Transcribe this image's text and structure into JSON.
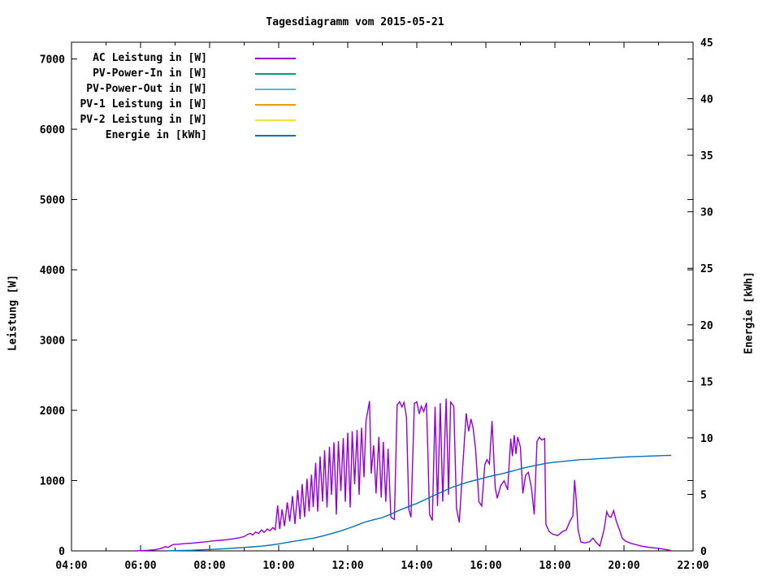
{
  "title": "Tagesdiagramm vom 2015-05-21",
  "axes": {
    "x": {
      "tick_labels": [
        "04:00",
        "06:00",
        "08:00",
        "10:00",
        "12:00",
        "14:00",
        "16:00",
        "18:00",
        "20:00",
        "22:00"
      ],
      "major_tick_hours": [
        4,
        6,
        8,
        10,
        12,
        14,
        16,
        18,
        20,
        22
      ],
      "minor_tick_hours": [
        5,
        7,
        9,
        11,
        13,
        15,
        17,
        19,
        21
      ]
    },
    "y_left": {
      "label": "Leistung [W]",
      "tick_labels": [
        "0",
        "1000",
        "2000",
        "3000",
        "4000",
        "5000",
        "6000",
        "7000"
      ],
      "tick_values": [
        0,
        1000,
        2000,
        3000,
        4000,
        5000,
        6000,
        7000
      ]
    },
    "y_right": {
      "label": "Energie [kWh]",
      "tick_labels": [
        "0",
        "5",
        "10",
        "15",
        "20",
        "25",
        "30",
        "35",
        "40",
        "45"
      ],
      "tick_values": [
        0,
        5,
        10,
        15,
        20,
        25,
        30,
        35,
        40,
        45
      ]
    }
  },
  "chart_data": {
    "type": "line",
    "title": "Tagesdiagramm vom 2015-05-21",
    "xlabel": "",
    "ylabel_left": "Leistung [W]",
    "ylabel_right": "Energie [kWh]",
    "x_range_hours": [
      4,
      22
    ],
    "y_left_range": [
      0,
      7238
    ],
    "y_right_range": [
      0,
      45
    ],
    "grid": false,
    "legend_position": "top-left-inside",
    "series": [
      {
        "name": "AC Leistung in [W]",
        "color": "#9400d3",
        "axis": "left",
        "points": [
          [
            5.85,
            0
          ],
          [
            6.0,
            3
          ],
          [
            6.2,
            8
          ],
          [
            6.4,
            15
          ],
          [
            6.55,
            30
          ],
          [
            6.65,
            45
          ],
          [
            6.72,
            60
          ],
          [
            6.8,
            50
          ],
          [
            6.88,
            75
          ],
          [
            6.95,
            90
          ],
          [
            7.1,
            95
          ],
          [
            7.3,
            105
          ],
          [
            7.5,
            110
          ],
          [
            7.7,
            120
          ],
          [
            7.9,
            130
          ],
          [
            8.1,
            142
          ],
          [
            8.3,
            150
          ],
          [
            8.5,
            160
          ],
          [
            8.7,
            172
          ],
          [
            8.85,
            185
          ],
          [
            9.0,
            205
          ],
          [
            9.1,
            235
          ],
          [
            9.18,
            250
          ],
          [
            9.25,
            225
          ],
          [
            9.33,
            268
          ],
          [
            9.42,
            248
          ],
          [
            9.5,
            298
          ],
          [
            9.58,
            262
          ],
          [
            9.67,
            312
          ],
          [
            9.75,
            288
          ],
          [
            9.83,
            332
          ],
          [
            9.9,
            302
          ],
          [
            9.97,
            645
          ],
          [
            10.03,
            312
          ],
          [
            10.1,
            592
          ],
          [
            10.17,
            352
          ],
          [
            10.25,
            692
          ],
          [
            10.32,
            418
          ],
          [
            10.4,
            782
          ],
          [
            10.47,
            382
          ],
          [
            10.55,
            865
          ],
          [
            10.62,
            452
          ],
          [
            10.68,
            952
          ],
          [
            10.75,
            482
          ],
          [
            10.82,
            1025
          ],
          [
            10.88,
            562
          ],
          [
            10.95,
            1085
          ],
          [
            11.0,
            622
          ],
          [
            11.07,
            1255
          ],
          [
            11.13,
            558
          ],
          [
            11.2,
            1345
          ],
          [
            11.27,
            702
          ],
          [
            11.33,
            1432
          ],
          [
            11.4,
            618
          ],
          [
            11.47,
            1482
          ],
          [
            11.53,
            798
          ],
          [
            11.6,
            1545
          ],
          [
            11.67,
            518
          ],
          [
            11.73,
            1562
          ],
          [
            11.8,
            852
          ],
          [
            11.87,
            1605
          ],
          [
            11.93,
            698
          ],
          [
            12.0,
            1682
          ],
          [
            12.07,
            618
          ],
          [
            12.13,
            1702
          ],
          [
            12.2,
            948
          ],
          [
            12.27,
            1722
          ],
          [
            12.33,
            798
          ],
          [
            12.4,
            1752
          ],
          [
            12.47,
            1048
          ],
          [
            12.53,
            1848
          ],
          [
            12.63,
            2132
          ],
          [
            12.68,
            1098
          ],
          [
            12.75,
            1502
          ],
          [
            12.82,
            818
          ],
          [
            12.9,
            1622
          ],
          [
            12.97,
            758
          ],
          [
            13.03,
            1552
          ],
          [
            13.1,
            698
          ],
          [
            13.17,
            1452
          ],
          [
            13.25,
            478
          ],
          [
            13.35,
            448
          ],
          [
            13.43,
            2078
          ],
          [
            13.5,
            2122
          ],
          [
            13.57,
            2048
          ],
          [
            13.63,
            2112
          ],
          [
            13.7,
            1902
          ],
          [
            13.77,
            588
          ],
          [
            13.83,
            478
          ],
          [
            13.93,
            2098
          ],
          [
            14.0,
            2122
          ],
          [
            14.07,
            1948
          ],
          [
            14.13,
            2058
          ],
          [
            14.2,
            1982
          ],
          [
            14.28,
            2108
          ],
          [
            14.37,
            518
          ],
          [
            14.45,
            432
          ],
          [
            14.53,
            2052
          ],
          [
            14.6,
            638
          ],
          [
            14.68,
            2102
          ],
          [
            14.75,
            702
          ],
          [
            14.85,
            2168
          ],
          [
            14.92,
            798
          ],
          [
            14.98,
            2118
          ],
          [
            15.07,
            2058
          ],
          [
            15.15,
            598
          ],
          [
            15.23,
            405
          ],
          [
            15.33,
            1198
          ],
          [
            15.43,
            1958
          ],
          [
            15.5,
            1702
          ],
          [
            15.57,
            1878
          ],
          [
            15.63,
            1748
          ],
          [
            15.7,
            1452
          ],
          [
            15.8,
            698
          ],
          [
            15.88,
            638
          ],
          [
            15.97,
            1228
          ],
          [
            16.03,
            1298
          ],
          [
            16.1,
            1238
          ],
          [
            16.18,
            1848
          ],
          [
            16.27,
            898
          ],
          [
            16.33,
            748
          ],
          [
            16.43,
            928
          ],
          [
            16.53,
            998
          ],
          [
            16.63,
            868
          ],
          [
            16.72,
            1598
          ],
          [
            16.77,
            1348
          ],
          [
            16.82,
            1648
          ],
          [
            16.87,
            1378
          ],
          [
            16.92,
            1618
          ],
          [
            17.0,
            1478
          ],
          [
            17.07,
            818
          ],
          [
            17.15,
            1078
          ],
          [
            17.23,
            1118
          ],
          [
            17.32,
            898
          ],
          [
            17.4,
            518
          ],
          [
            17.48,
            1558
          ],
          [
            17.55,
            1618
          ],
          [
            17.62,
            1578
          ],
          [
            17.7,
            1598
          ],
          [
            17.74,
            378
          ],
          [
            17.83,
            278
          ],
          [
            17.93,
            238
          ],
          [
            18.08,
            218
          ],
          [
            18.23,
            278
          ],
          [
            18.33,
            298
          ],
          [
            18.43,
            418
          ],
          [
            18.52,
            498
          ],
          [
            18.57,
            1008
          ],
          [
            18.62,
            698
          ],
          [
            18.67,
            298
          ],
          [
            18.75,
            128
          ],
          [
            18.85,
            112
          ],
          [
            19.0,
            128
          ],
          [
            19.1,
            182
          ],
          [
            19.2,
            118
          ],
          [
            19.3,
            68
          ],
          [
            19.42,
            298
          ],
          [
            19.5,
            558
          ],
          [
            19.55,
            498
          ],
          [
            19.62,
            478
          ],
          [
            19.7,
            572
          ],
          [
            19.78,
            418
          ],
          [
            19.87,
            298
          ],
          [
            19.95,
            178
          ],
          [
            20.05,
            138
          ],
          [
            20.2,
            108
          ],
          [
            20.35,
            88
          ],
          [
            20.5,
            68
          ],
          [
            20.7,
            52
          ],
          [
            20.9,
            42
          ],
          [
            21.1,
            28
          ],
          [
            21.3,
            10
          ],
          [
            21.37,
            5
          ]
        ]
      },
      {
        "name": "PV-Power-In in [W]",
        "color": "#009e73",
        "axis": "left",
        "points": []
      },
      {
        "name": "PV-Power-Out in [W]",
        "color": "#56b4e9",
        "axis": "left",
        "points": []
      },
      {
        "name": "PV-1 Leistung in [W]",
        "color": "#e69f00",
        "axis": "left",
        "points": []
      },
      {
        "name": "PV-2 Leistung in [W]",
        "color": "#f0e442",
        "axis": "left",
        "points": []
      },
      {
        "name": "Energie in [kWh]",
        "color": "#0072b2",
        "axis": "right",
        "points": [
          [
            6.75,
            0
          ],
          [
            7.0,
            0.02
          ],
          [
            7.25,
            0.04
          ],
          [
            7.5,
            0.06
          ],
          [
            7.75,
            0.09
          ],
          [
            8.0,
            0.12
          ],
          [
            8.25,
            0.16
          ],
          [
            8.5,
            0.2
          ],
          [
            8.75,
            0.25
          ],
          [
            9.0,
            0.3
          ],
          [
            9.25,
            0.36
          ],
          [
            9.5,
            0.42
          ],
          [
            9.75,
            0.5
          ],
          [
            10.0,
            0.62
          ],
          [
            10.25,
            0.75
          ],
          [
            10.5,
            0.88
          ],
          [
            10.75,
            1.0
          ],
          [
            11.0,
            1.12
          ],
          [
            11.25,
            1.3
          ],
          [
            11.5,
            1.5
          ],
          [
            11.75,
            1.72
          ],
          [
            12.0,
            1.98
          ],
          [
            12.25,
            2.25
          ],
          [
            12.5,
            2.55
          ],
          [
            12.75,
            2.75
          ],
          [
            13.0,
            2.95
          ],
          [
            13.25,
            3.25
          ],
          [
            13.5,
            3.6
          ],
          [
            13.75,
            3.9
          ],
          [
            14.0,
            4.2
          ],
          [
            14.25,
            4.55
          ],
          [
            14.5,
            4.9
          ],
          [
            14.75,
            5.25
          ],
          [
            15.0,
            5.6
          ],
          [
            15.25,
            5.85
          ],
          [
            15.5,
            6.1
          ],
          [
            15.75,
            6.3
          ],
          [
            16.0,
            6.5
          ],
          [
            16.25,
            6.68
          ],
          [
            16.5,
            6.85
          ],
          [
            16.75,
            7.05
          ],
          [
            17.0,
            7.25
          ],
          [
            17.25,
            7.45
          ],
          [
            17.5,
            7.6
          ],
          [
            17.75,
            7.75
          ],
          [
            18.0,
            7.85
          ],
          [
            18.25,
            7.92
          ],
          [
            18.5,
            8.0
          ],
          [
            18.75,
            8.07
          ],
          [
            19.0,
            8.1
          ],
          [
            19.25,
            8.15
          ],
          [
            19.5,
            8.2
          ],
          [
            19.75,
            8.25
          ],
          [
            20.0,
            8.3
          ],
          [
            20.25,
            8.33
          ],
          [
            20.5,
            8.36
          ],
          [
            20.75,
            8.39
          ],
          [
            21.0,
            8.42
          ],
          [
            21.2,
            8.44
          ],
          [
            21.37,
            8.45
          ]
        ]
      }
    ]
  },
  "colors": {
    "background": "#ffffff",
    "axis": "#000000",
    "text": "#000000"
  }
}
